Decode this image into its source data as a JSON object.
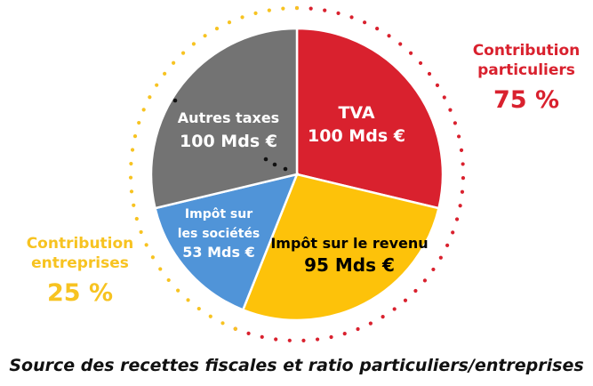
{
  "chart_data": {
    "type": "pie",
    "title": "Source des recettes fiscales et ratio particuliers/entreprises",
    "unit": "Mds €",
    "slices": [
      {
        "label_lines": [
          "TVA"
        ],
        "value": 100,
        "value_label": "100 Mds €",
        "color": "#d9212e",
        "text_color": "#ffffff"
      },
      {
        "label_lines": [
          "Impôt sur le revenu"
        ],
        "value": 95,
        "value_label": "95 Mds €",
        "color": "#fdc20a",
        "text_color": "#000000"
      },
      {
        "label_lines": [
          "Impôt sur",
          "les sociétés"
        ],
        "value": 53,
        "value_label": "53 Mds €",
        "color": "#5094d8",
        "text_color": "#ffffff"
      },
      {
        "label_lines": [
          "Autres taxes"
        ],
        "value": 100,
        "value_label": "100 Mds €",
        "color": "#737373",
        "text_color": "#ffffff"
      }
    ],
    "groups": [
      {
        "name_lines": [
          "Contribution",
          "particuliers"
        ],
        "percent_label": "75 %",
        "color": "#d9212e"
      },
      {
        "name_lines": [
          "Contribution",
          "entreprises"
        ],
        "percent_label": "25 %",
        "color": "#f7c321"
      }
    ]
  },
  "caption": "Source des recettes fiscales et ratio particuliers/entreprises"
}
